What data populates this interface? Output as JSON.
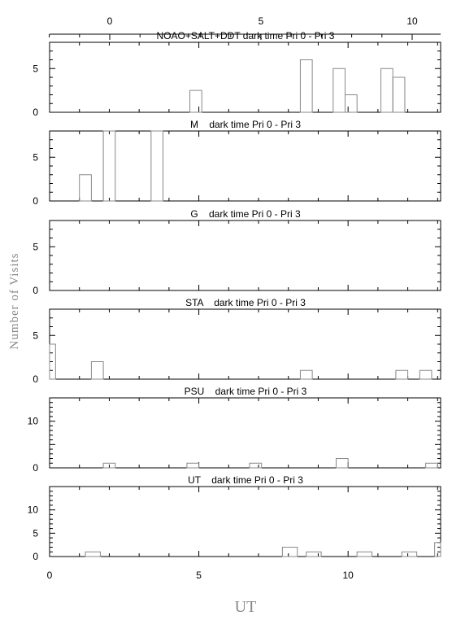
{
  "figure": {
    "ylabel": "Number of Visits",
    "xlabel": "UT",
    "top_axis_ticks": [
      "0",
      "5",
      "10"
    ],
    "bottom_axis_ticks": [
      "0",
      "5",
      "10"
    ],
    "colors": {
      "axis": "#000000",
      "bars": "#888888",
      "axis_title": "#888888"
    }
  },
  "chart_data": [
    {
      "type": "bar",
      "title": "NOAO+SALT+DDT dark time Pri 0 - Pri 3",
      "xlim": [
        0,
        13.1
      ],
      "ylim": [
        0,
        8
      ],
      "yticks": [
        0,
        5
      ],
      "grid": false,
      "bins": [
        {
          "x0": 4.7,
          "x1": 5.1,
          "y": 2.5
        },
        {
          "x0": 8.4,
          "x1": 8.8,
          "y": 6
        },
        {
          "x0": 9.5,
          "x1": 9.9,
          "y": 5
        },
        {
          "x0": 9.9,
          "x1": 10.3,
          "y": 2
        },
        {
          "x0": 11.1,
          "x1": 11.5,
          "y": 5
        },
        {
          "x0": 11.5,
          "x1": 11.9,
          "y": 4
        }
      ]
    },
    {
      "type": "bar",
      "title": "M    dark time Pri 0 - Pri 3",
      "xlim": [
        0,
        13.1
      ],
      "ylim": [
        0,
        8
      ],
      "yticks": [
        0,
        5
      ],
      "grid": false,
      "bins": [
        {
          "x0": 1.0,
          "x1": 1.4,
          "y": 3
        },
        {
          "x0": 1.8,
          "x1": 2.2,
          "y": 8
        },
        {
          "x0": 3.4,
          "x1": 3.8,
          "y": 8
        }
      ]
    },
    {
      "type": "bar",
      "title": "G    dark time Pri 0 - Pri 3",
      "xlim": [
        0,
        13.1
      ],
      "ylim": [
        0,
        8
      ],
      "yticks": [
        0,
        5
      ],
      "grid": false,
      "bins": []
    },
    {
      "type": "bar",
      "title": "STA    dark time Pri 0 - Pri 3",
      "xlim": [
        0,
        13.1
      ],
      "ylim": [
        0,
        8
      ],
      "yticks": [
        0,
        5
      ],
      "grid": false,
      "bins": [
        {
          "x0": 0.0,
          "x1": 0.2,
          "y": 4
        },
        {
          "x0": 1.4,
          "x1": 1.8,
          "y": 2
        },
        {
          "x0": 8.4,
          "x1": 8.8,
          "y": 1
        },
        {
          "x0": 11.6,
          "x1": 12.0,
          "y": 1
        },
        {
          "x0": 12.4,
          "x1": 12.8,
          "y": 1
        }
      ]
    },
    {
      "type": "bar",
      "title": "PSU    dark time Pri 0 - Pri 3",
      "xlim": [
        0,
        13.1
      ],
      "ylim": [
        0,
        15
      ],
      "yticks": [
        0,
        10
      ],
      "grid": false,
      "bins": [
        {
          "x0": 1.8,
          "x1": 2.2,
          "y": 1
        },
        {
          "x0": 4.6,
          "x1": 5.0,
          "y": 1
        },
        {
          "x0": 6.7,
          "x1": 7.1,
          "y": 1
        },
        {
          "x0": 9.6,
          "x1": 10.0,
          "y": 2
        },
        {
          "x0": 12.6,
          "x1": 13.0,
          "y": 1
        }
      ]
    },
    {
      "type": "bar",
      "title": "UT    dark time Pri 0 - Pri 3",
      "xlim": [
        0,
        13.1
      ],
      "ylim": [
        0,
        15
      ],
      "yticks": [
        0,
        5,
        10
      ],
      "grid": false,
      "bins": [
        {
          "x0": 1.2,
          "x1": 1.7,
          "y": 1
        },
        {
          "x0": 7.8,
          "x1": 8.3,
          "y": 2
        },
        {
          "x0": 8.6,
          "x1": 9.1,
          "y": 1
        },
        {
          "x0": 10.3,
          "x1": 10.8,
          "y": 1
        },
        {
          "x0": 11.8,
          "x1": 12.3,
          "y": 1
        },
        {
          "x0": 12.9,
          "x1": 13.1,
          "y": 3
        }
      ]
    }
  ]
}
